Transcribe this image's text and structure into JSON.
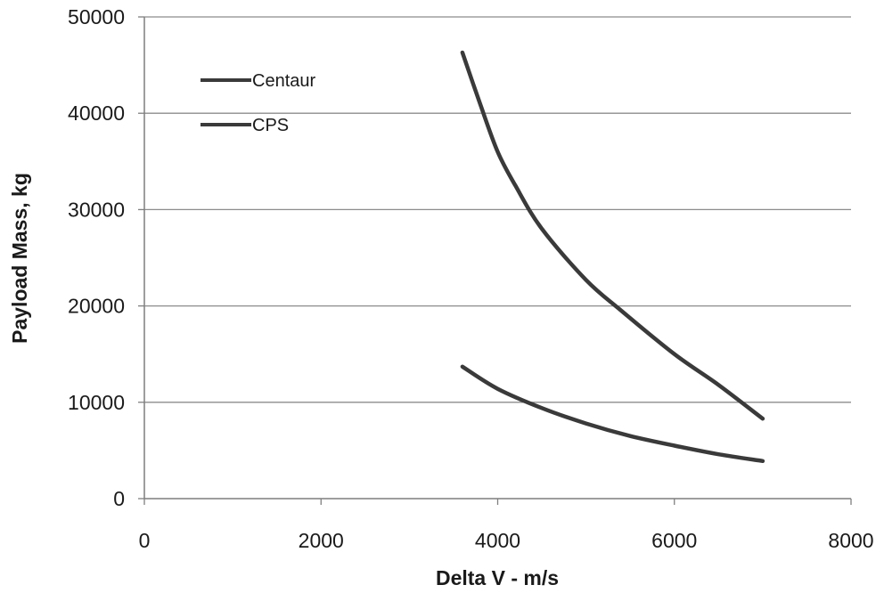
{
  "chart_data": {
    "type": "line",
    "title": "",
    "xlabel": "Delta V - m/s",
    "ylabel": "Payload Mass, kg",
    "xlim": [
      0,
      8000
    ],
    "ylim": [
      0,
      50000
    ],
    "xticks": [
      "0",
      "2000",
      "4000",
      "6000",
      "8000"
    ],
    "yticks": [
      "0",
      "10000",
      "20000",
      "30000",
      "40000",
      "50000"
    ],
    "grid": "horizontal",
    "legend_position": "top-left",
    "series": [
      {
        "name": "Centaur",
        "color": "#3a3a3a",
        "x": [
          3600,
          3800,
          4000,
          4200,
          4500,
          5000,
          5400,
          6000,
          6500,
          7000
        ],
        "y": [
          46300,
          41000,
          36000,
          32500,
          28000,
          22700,
          19500,
          15000,
          11800,
          8300
        ]
      },
      {
        "name": "CPS",
        "color": "#3a3a3a",
        "x": [
          3600,
          4000,
          4500,
          5000,
          5500,
          6000,
          6500,
          7000
        ],
        "y": [
          13700,
          11400,
          9400,
          7800,
          6500,
          5500,
          4600,
          3900
        ]
      }
    ]
  }
}
